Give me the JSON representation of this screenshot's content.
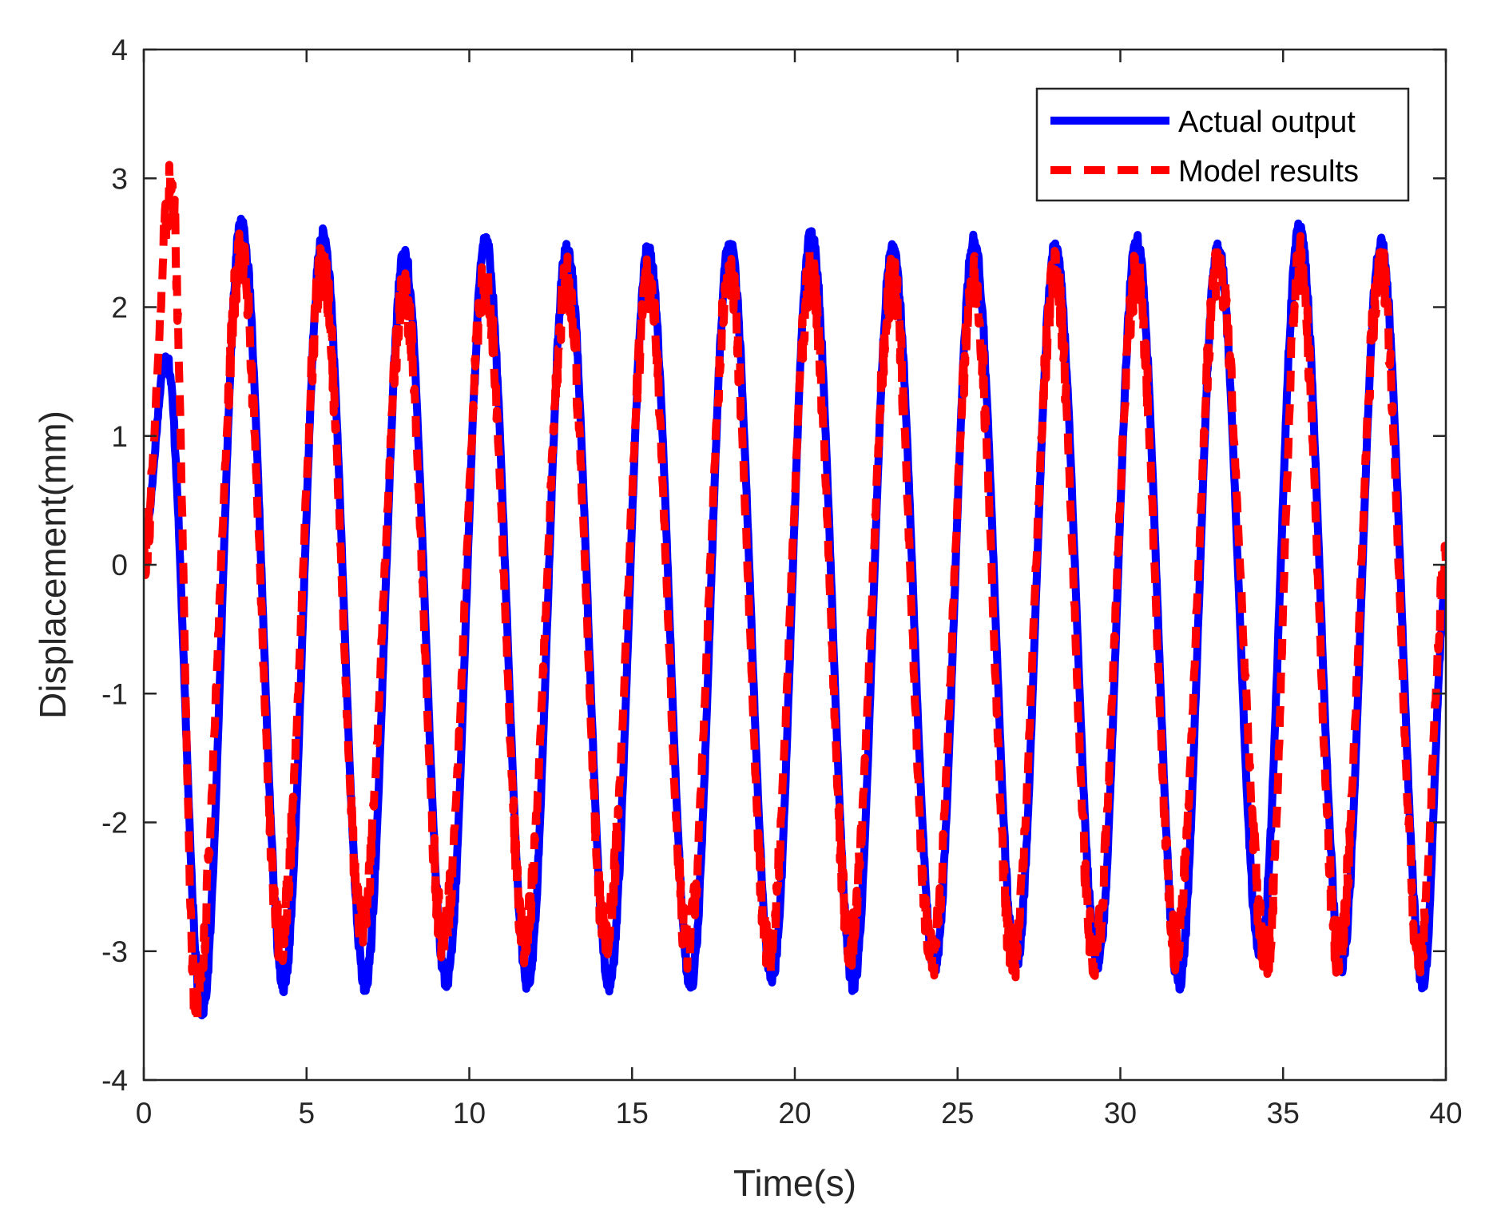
{
  "chart_data": {
    "type": "line",
    "title": "",
    "xlabel": "Time(s)",
    "ylabel": "Displacement(mm)",
    "xlim": [
      0,
      40
    ],
    "ylim": [
      -4,
      4
    ],
    "xticks": [
      0,
      5,
      10,
      15,
      20,
      25,
      30,
      35,
      40
    ],
    "yticks": [
      -4,
      -3,
      -2,
      -1,
      0,
      1,
      2,
      3,
      4
    ],
    "legend_position": "top-right",
    "box": true,
    "grid": false,
    "series": [
      {
        "name": "Actual output",
        "color": "#0000ff",
        "style": "solid",
        "period_s": 2.5,
        "peaks": [
          {
            "t": 0.7,
            "y": 1.6
          },
          {
            "t": 3.0,
            "y": 2.65
          },
          {
            "t": 5.5,
            "y": 2.55
          },
          {
            "t": 8.0,
            "y": 2.4
          },
          {
            "t": 10.5,
            "y": 2.5
          },
          {
            "t": 13.0,
            "y": 2.45
          },
          {
            "t": 15.5,
            "y": 2.45
          },
          {
            "t": 18.0,
            "y": 2.5
          },
          {
            "t": 20.5,
            "y": 2.55
          },
          {
            "t": 23.0,
            "y": 2.45
          },
          {
            "t": 25.5,
            "y": 2.5
          },
          {
            "t": 28.0,
            "y": 2.45
          },
          {
            "t": 30.5,
            "y": 2.5
          },
          {
            "t": 33.0,
            "y": 2.45
          },
          {
            "t": 35.5,
            "y": 2.6
          },
          {
            "t": 38.0,
            "y": 2.5
          }
        ],
        "troughs": [
          {
            "t": 1.8,
            "y": -3.45
          },
          {
            "t": 4.3,
            "y": -3.25
          },
          {
            "t": 6.8,
            "y": -3.25
          },
          {
            "t": 9.3,
            "y": -3.25
          },
          {
            "t": 11.8,
            "y": -3.25
          },
          {
            "t": 14.3,
            "y": -3.25
          },
          {
            "t": 16.8,
            "y": -3.25
          },
          {
            "t": 19.3,
            "y": -3.2
          },
          {
            "t": 21.8,
            "y": -3.25
          },
          {
            "t": 24.3,
            "y": -3.1
          },
          {
            "t": 26.8,
            "y": -3.1
          },
          {
            "t": 29.3,
            "y": -3.1
          },
          {
            "t": 31.8,
            "y": -3.25
          },
          {
            "t": 34.3,
            "y": -3.0
          },
          {
            "t": 36.8,
            "y": -3.1
          },
          {
            "t": 39.3,
            "y": -3.25
          }
        ],
        "end": {
          "t": 40,
          "y": -0.2
        },
        "start": {
          "t": 0,
          "y": 0.2
        }
      },
      {
        "name": "Model results",
        "color": "#ff0000",
        "style": "dashed",
        "period_s": 2.5,
        "peaks": [
          {
            "t": 0.85,
            "y": 2.95
          },
          {
            "t": 3.0,
            "y": 2.4
          },
          {
            "t": 5.5,
            "y": 2.3
          },
          {
            "t": 8.0,
            "y": 2.1
          },
          {
            "t": 10.5,
            "y": 2.2
          },
          {
            "t": 13.0,
            "y": 2.2
          },
          {
            "t": 15.5,
            "y": 2.2
          },
          {
            "t": 18.0,
            "y": 2.25
          },
          {
            "t": 20.5,
            "y": 2.25
          },
          {
            "t": 23.0,
            "y": 2.2
          },
          {
            "t": 25.5,
            "y": 2.2
          },
          {
            "t": 28.0,
            "y": 2.25
          },
          {
            "t": 30.5,
            "y": 2.25
          },
          {
            "t": 33.0,
            "y": 2.3
          },
          {
            "t": 35.5,
            "y": 2.35
          },
          {
            "t": 38.0,
            "y": 2.3
          }
        ],
        "troughs": [
          {
            "t": 1.6,
            "y": -3.35
          },
          {
            "t": 4.2,
            "y": -2.9
          },
          {
            "t": 6.7,
            "y": -2.8
          },
          {
            "t": 9.2,
            "y": -2.9
          },
          {
            "t": 11.7,
            "y": -2.9
          },
          {
            "t": 14.2,
            "y": -2.9
          },
          {
            "t": 16.7,
            "y": -2.95
          },
          {
            "t": 19.2,
            "y": -3.0
          },
          {
            "t": 21.7,
            "y": -2.95
          },
          {
            "t": 24.2,
            "y": -3.05
          },
          {
            "t": 26.7,
            "y": -3.05
          },
          {
            "t": 29.2,
            "y": -3.05
          },
          {
            "t": 31.7,
            "y": -2.95
          },
          {
            "t": 34.5,
            "y": -3.05
          },
          {
            "t": 36.7,
            "y": -3.0
          },
          {
            "t": 39.2,
            "y": -3.05
          }
        ],
        "end": {
          "t": 40,
          "y": 0.0
        },
        "start": {
          "t": 0,
          "y": 0.1
        }
      }
    ]
  }
}
